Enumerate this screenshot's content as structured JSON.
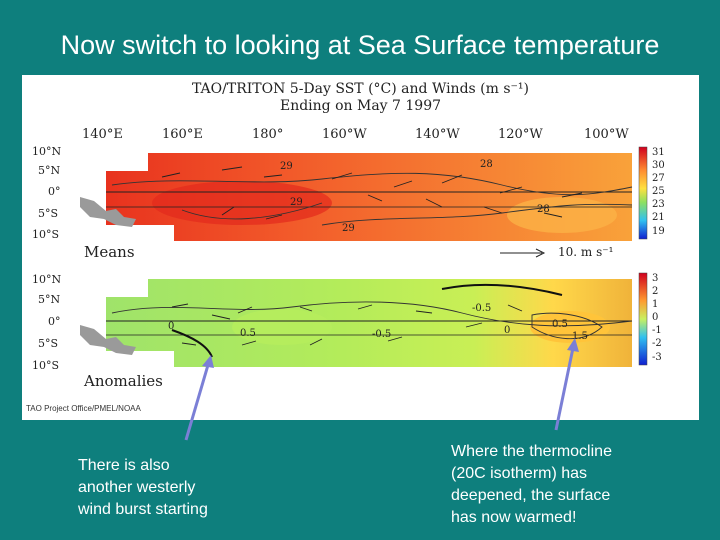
{
  "slide": {
    "title": "Now switch to looking at Sea Surface temperature",
    "background": "#0e7f7d"
  },
  "figure": {
    "title_line1": "TAO/TRITON 5-Day SST (°C) and Winds (m s⁻¹)",
    "title_line2": "Ending on May 7 1997",
    "longitudes": [
      "140°E",
      "160°E",
      "180°",
      "160°W",
      "140°W",
      "120°W",
      "100°W"
    ],
    "latitudes": [
      "10°N",
      "5°N",
      "0°",
      "5°S",
      "10°S"
    ],
    "means": {
      "label": "Means",
      "reference_vector": "10. m s⁻¹",
      "contour_labels": [
        "29",
        "29",
        "28",
        "28",
        "29"
      ],
      "colorbar_ticks": [
        "31",
        "30",
        "27",
        "25",
        "23",
        "21",
        "19"
      ]
    },
    "anomalies": {
      "label": "Anomalies",
      "contour_labels": [
        "0",
        "0.5",
        "-0.5",
        "-0.5",
        "0",
        "0.5",
        "1.5"
      ],
      "colorbar_ticks": [
        "3",
        "2",
        "1",
        "0",
        "-1",
        "-2",
        "-3"
      ]
    },
    "credit": "TAO Project Office/PMEL/NOAA"
  },
  "captions": {
    "left": [
      "There is also",
      "another westerly",
      "wind burst starting"
    ],
    "right": [
      "Where the thermocline",
      "(20C isotherm) has",
      "deepened, the surface",
      "has now warmed!"
    ]
  },
  "colors": {
    "arrow": "#7b7fd6",
    "means_warm": "#f0502a",
    "means_mid": "#f9a23a",
    "anom_green": "#9fe36a",
    "anom_yellow": "#ffd84a"
  }
}
